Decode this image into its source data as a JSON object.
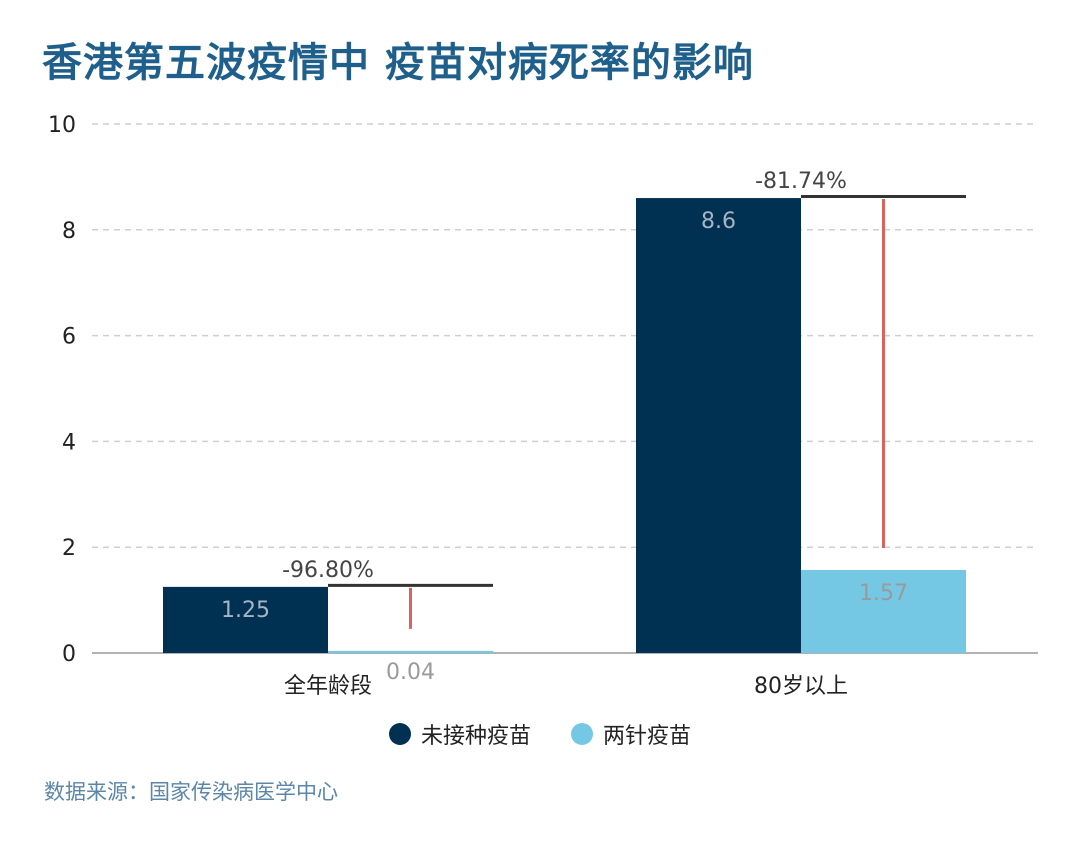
{
  "page": {
    "title": "香港第五波疫情中 疫苗对病死率的影响",
    "source": "数据来源：国家传染病医学中心"
  },
  "legend": {
    "items": [
      {
        "label": "未接种疫苗",
        "color": "#003153"
      },
      {
        "label": "两针疫苗",
        "color": "#74c8e3"
      }
    ]
  },
  "colors": {
    "unvaccinated": "#003153",
    "two_doses": "#74c8e3",
    "reduction_line": "#d9645d",
    "reference_line": "#333333",
    "grid": "#cfcfcf",
    "axis": "#999999"
  },
  "chart_data": {
    "type": "bar",
    "title": "香港第五波疫情中 疫苗对病死率的影响",
    "xlabel": "",
    "ylabel": "",
    "categories": [
      "全年龄段",
      "80岁以上"
    ],
    "series": [
      {
        "name": "未接种疫苗",
        "values": [
          1.25,
          8.6
        ],
        "labels": [
          "1.25",
          "8.6"
        ]
      },
      {
        "name": "两针疫苗",
        "values": [
          0.04,
          1.57
        ],
        "labels": [
          "0.04",
          "1.57"
        ]
      }
    ],
    "annotations": [
      {
        "category": "全年龄段",
        "text": "-96.80%"
      },
      {
        "category": "80岁以上",
        "text": "-81.74%"
      }
    ],
    "ylim": [
      0,
      10
    ],
    "yticks": [
      0,
      2,
      4,
      6,
      8,
      10
    ],
    "ytick_labels": [
      "0",
      "2",
      "4",
      "6",
      "8",
      "10"
    ],
    "grid": true,
    "legend_position": "bottom-center"
  }
}
